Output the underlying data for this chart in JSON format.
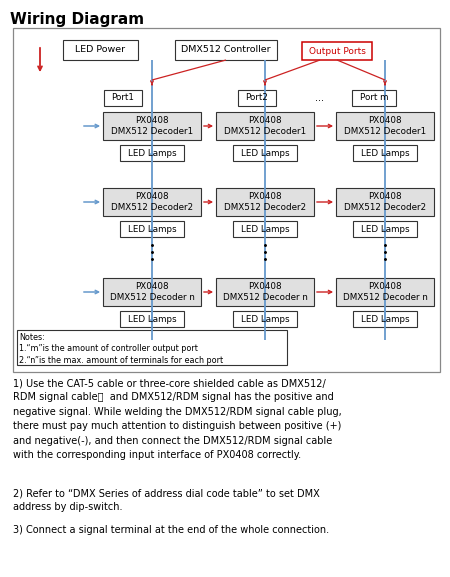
{
  "title": "Wiring Diagram",
  "fig_width": 4.5,
  "fig_height": 5.77,
  "dpi": 100,
  "note_text": "Notes:\n1.“m”is the amount of controller output port\n2.“n”is the max. amount of terminals for each port",
  "para1": "1) Use the CAT-5 cable or three-core shielded cable as DMX512/\nRDM signal cable，  and DMX512/RDM signal has the positive and\nnegative signal. While welding the DMX512/RDM signal cable plug,\nthere must pay much attention to distinguish between positive (+)\nand negative(-), and then connect the DMX512/RDM signal cable\nwith the corresponding input interface of PX0408 correctly.",
  "para2": "2) Refer to “DMX Series of address dial code table” to set DMX\naddress by dip-switch.",
  "para3": "3) Connect a signal terminal at the end of the whole connection.",
  "blue": "#6699cc",
  "red": "#cc2222",
  "gray_fill": "#e0e0e0",
  "dark": "#333333",
  "red_border": "#cc0000"
}
